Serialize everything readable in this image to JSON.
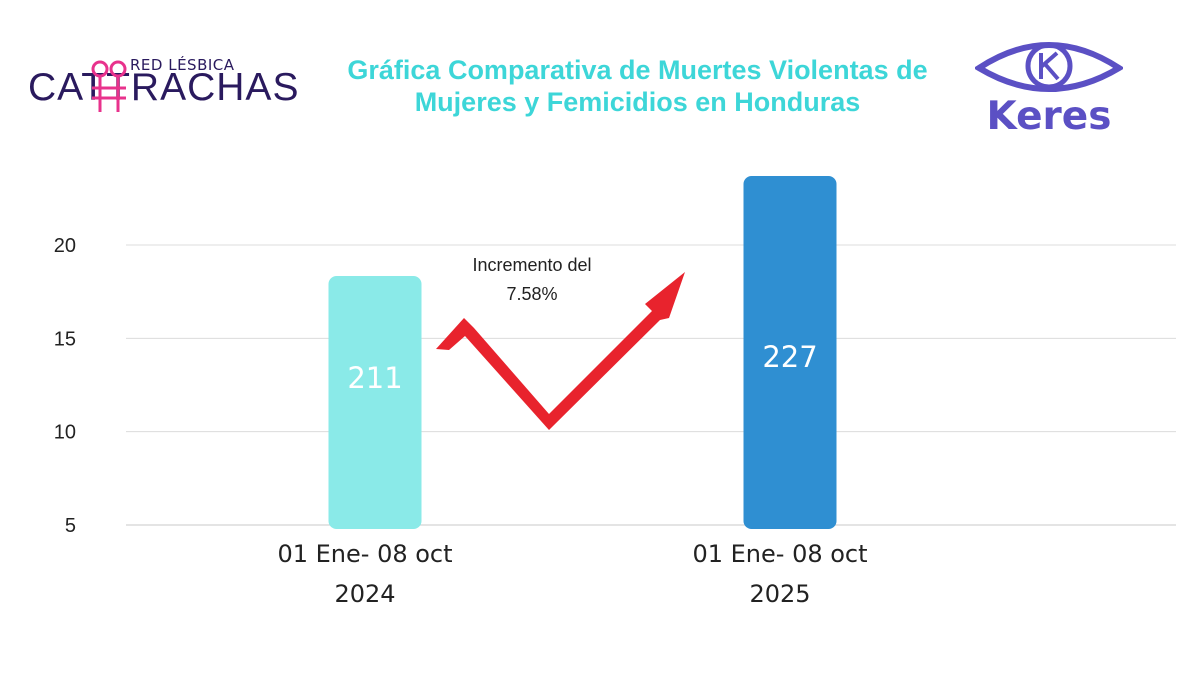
{
  "header": {
    "title_line1": "Gráfica Comparativa de Muertes Violentas de",
    "title_line2": "Mujeres y Femicidios en Honduras",
    "logo_left_small": "RED LÉSBICA",
    "logo_left_main": "CATTRACHAS",
    "logo_right_text": "Keres"
  },
  "colors": {
    "title": "#3dd6d8",
    "brand_dark": "#2a1a5e",
    "brand_pink": "#e8328c",
    "keres_purple": "#5b50c4",
    "arrow": "#e8232d"
  },
  "chart_data": {
    "type": "bar",
    "categories": [
      [
        "01 Ene- 08 oct",
        "2024"
      ],
      [
        "01 Ene- 08 oct",
        "2025"
      ]
    ],
    "values": [
      211,
      227
    ],
    "data_labels": [
      "211",
      "227"
    ],
    "bar_colors": [
      "#8aeae8",
      "#2f8fd2"
    ],
    "y_ticks": [
      5,
      10,
      15,
      20
    ],
    "grid": true,
    "annotation": {
      "line1": "Incremento del",
      "line2": "7.58%"
    }
  }
}
